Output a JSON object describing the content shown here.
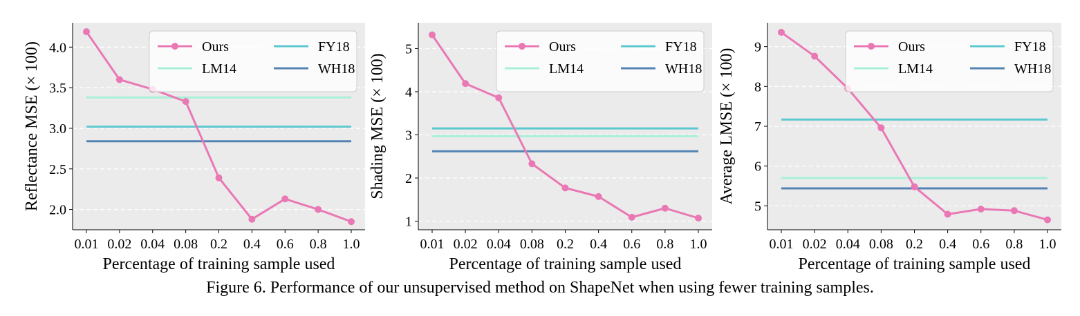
{
  "figure": {
    "caption": "Figure 6. Performance of our unsupervised method on ShapeNet when using fewer training samples.",
    "colors": {
      "plot_background": "#ebebeb",
      "gridline": "#ffffff",
      "Ours": "#e978b4",
      "FY18": "#5cc8cf",
      "LM14": "#a8f0d8",
      "WH18": "#5383b3"
    }
  },
  "chart_data": [
    {
      "type": "line",
      "xlabel": "Percentage of training sample used",
      "ylabel": "Reflectance MSE (× 100)",
      "categories": [
        "0.01",
        "0.02",
        "0.04",
        "0.08",
        "0.2",
        "0.4",
        "0.6",
        "0.8",
        "1.0"
      ],
      "ylim": [
        1.75,
        4.3
      ],
      "yticks": [
        2.0,
        2.5,
        3.0,
        3.5,
        4.0
      ],
      "ytick_labels": [
        "2.0",
        "2.5",
        "3.0",
        "3.5",
        "4.0"
      ],
      "grid": "horizontal dashed",
      "legend_position": "top-right",
      "legend_order": [
        "Ours",
        "FY18",
        "LM14",
        "WH18"
      ],
      "series": [
        {
          "name": "Ours",
          "style": "line-marker",
          "values": [
            4.19,
            3.6,
            3.48,
            3.33,
            2.39,
            1.88,
            2.13,
            2.0,
            1.85
          ]
        },
        {
          "name": "FY18",
          "style": "hline",
          "value": 3.02
        },
        {
          "name": "LM14",
          "style": "hline",
          "value": 3.38
        },
        {
          "name": "WH18",
          "style": "hline",
          "value": 2.84
        }
      ]
    },
    {
      "type": "line",
      "xlabel": "Percentage of training sample used",
      "ylabel": "Shading MSE (× 100)",
      "categories": [
        "0.01",
        "0.02",
        "0.04",
        "0.08",
        "0.2",
        "0.4",
        "0.6",
        "0.8",
        "1.0"
      ],
      "ylim": [
        0.8,
        5.6
      ],
      "yticks": [
        1,
        2,
        3,
        4,
        5
      ],
      "ytick_labels": [
        "1",
        "2",
        "3",
        "4",
        "5"
      ],
      "grid": "horizontal dashed",
      "legend_position": "top-right",
      "legend_order": [
        "Ours",
        "FY18",
        "LM14",
        "WH18"
      ],
      "series": [
        {
          "name": "Ours",
          "style": "line-marker",
          "values": [
            5.32,
            4.19,
            3.86,
            2.33,
            1.77,
            1.57,
            1.09,
            1.3,
            1.07
          ]
        },
        {
          "name": "FY18",
          "style": "hline",
          "value": 3.15
        },
        {
          "name": "LM14",
          "style": "hline",
          "value": 2.97
        },
        {
          "name": "WH18",
          "style": "hline",
          "value": 2.62
        }
      ]
    },
    {
      "type": "line",
      "xlabel": "Percentage of training sample used",
      "ylabel": "Average LMSE (× 100)",
      "categories": [
        "0.01",
        "0.02",
        "0.04",
        "0.08",
        "0.2",
        "0.4",
        "0.6",
        "0.8",
        "1.0"
      ],
      "ylim": [
        4.4,
        9.6
      ],
      "yticks": [
        5,
        6,
        7,
        8,
        9
      ],
      "ytick_labels": [
        "5",
        "6",
        "7",
        "8",
        "9"
      ],
      "grid": "horizontal dashed",
      "legend_position": "top-right",
      "legend_order": [
        "Ours",
        "FY18",
        "LM14",
        "WH18"
      ],
      "series": [
        {
          "name": "Ours",
          "style": "line-marker",
          "values": [
            9.36,
            8.76,
            7.95,
            6.96,
            5.48,
            4.79,
            4.92,
            4.88,
            4.65
          ]
        },
        {
          "name": "FY18",
          "style": "hline",
          "value": 7.17
        },
        {
          "name": "LM14",
          "style": "hline",
          "value": 5.7
        },
        {
          "name": "WH18",
          "style": "hline",
          "value": 5.44
        }
      ]
    }
  ]
}
